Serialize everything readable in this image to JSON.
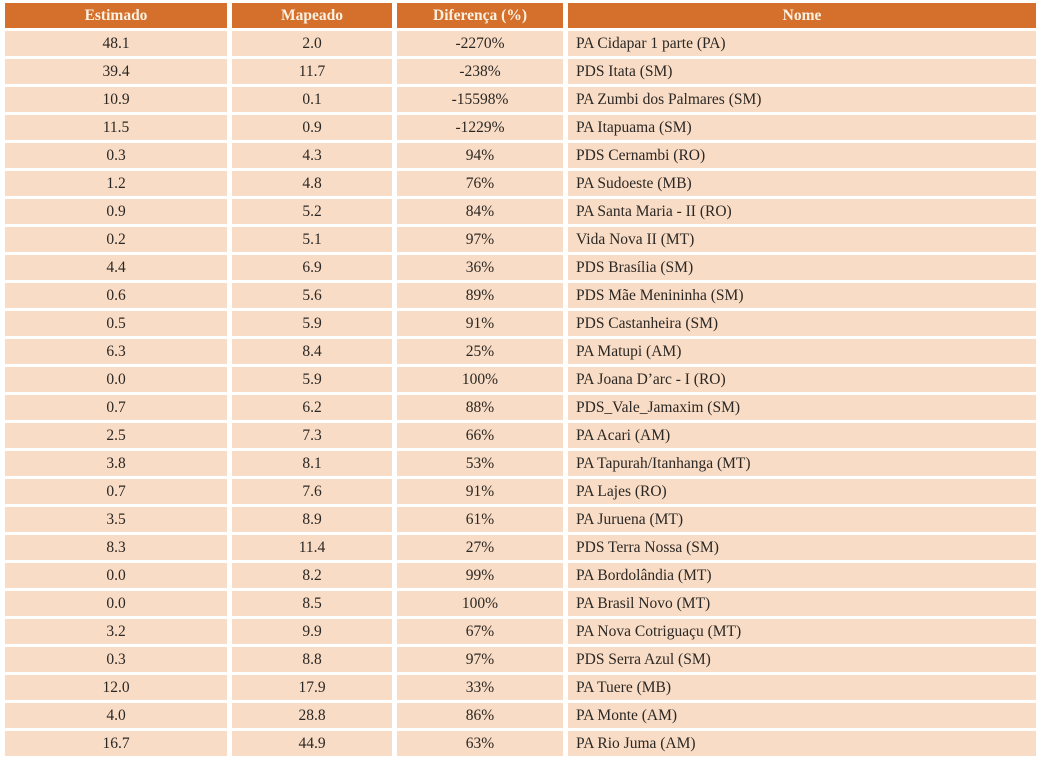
{
  "colors": {
    "header_bg": "#d4702c",
    "header_text": "#faf1e2",
    "row_bg": "#f8dcc5",
    "body_text": "#2b2724",
    "page_bg": "#ffffff"
  },
  "table": {
    "columns": [
      {
        "key": "estimado",
        "label": "Estimado"
      },
      {
        "key": "mapeado",
        "label": "Mapeado"
      },
      {
        "key": "diferenca",
        "label": "Diferença (%)"
      },
      {
        "key": "nome",
        "label": "Nome"
      }
    ]
  },
  "chart_data": {
    "type": "table",
    "title": "",
    "columns": [
      "Estimado",
      "Mapeado",
      "Diferença (%)",
      "Nome"
    ],
    "rows": [
      {
        "estimado": "48.1",
        "mapeado": "2.0",
        "diferenca": "-2270%",
        "nome": "PA Cidapar 1 parte (PA)"
      },
      {
        "estimado": "39.4",
        "mapeado": "11.7",
        "diferenca": "-238%",
        "nome": "PDS Itata (SM)"
      },
      {
        "estimado": "10.9",
        "mapeado": "0.1",
        "diferenca": "-15598%",
        "nome": "PA Zumbi dos Palmares (SM)"
      },
      {
        "estimado": "11.5",
        "mapeado": "0.9",
        "diferenca": "-1229%",
        "nome": "PA Itapuama (SM)"
      },
      {
        "estimado": "0.3",
        "mapeado": "4.3",
        "diferenca": "94%",
        "nome": "PDS Cernambi (RO)"
      },
      {
        "estimado": "1.2",
        "mapeado": "4.8",
        "diferenca": "76%",
        "nome": "PA Sudoeste (MB)"
      },
      {
        "estimado": "0.9",
        "mapeado": "5.2",
        "diferenca": "84%",
        "nome": "PA Santa Maria - II (RO)"
      },
      {
        "estimado": "0.2",
        "mapeado": "5.1",
        "diferenca": "97%",
        "nome": "Vida Nova II (MT)"
      },
      {
        "estimado": "4.4",
        "mapeado": "6.9",
        "diferenca": "36%",
        "nome": "PDS Brasília (SM)"
      },
      {
        "estimado": "0.6",
        "mapeado": "5.6",
        "diferenca": "89%",
        "nome": "PDS Mãe Menininha (SM)"
      },
      {
        "estimado": "0.5",
        "mapeado": "5.9",
        "diferenca": "91%",
        "nome": "PDS Castanheira (SM)"
      },
      {
        "estimado": "6.3",
        "mapeado": "8.4",
        "diferenca": "25%",
        "nome": "PA Matupi (AM)"
      },
      {
        "estimado": "0.0",
        "mapeado": "5.9",
        "diferenca": "100%",
        "nome": "PA Joana D’arc - I (RO)"
      },
      {
        "estimado": "0.7",
        "mapeado": "6.2",
        "diferenca": "88%",
        "nome": "PDS_Vale_Jamaxim (SM)"
      },
      {
        "estimado": "2.5",
        "mapeado": "7.3",
        "diferenca": "66%",
        "nome": "PA Acari (AM)"
      },
      {
        "estimado": "3.8",
        "mapeado": "8.1",
        "diferenca": "53%",
        "nome": "PA Tapurah/Itanhanga (MT)"
      },
      {
        "estimado": "0.7",
        "mapeado": "7.6",
        "diferenca": "91%",
        "nome": "PA Lajes (RO)"
      },
      {
        "estimado": "3.5",
        "mapeado": "8.9",
        "diferenca": "61%",
        "nome": "PA Juruena (MT)"
      },
      {
        "estimado": "8.3",
        "mapeado": "11.4",
        "diferenca": "27%",
        "nome": "PDS Terra Nossa (SM)"
      },
      {
        "estimado": "0.0",
        "mapeado": "8.2",
        "diferenca": "99%",
        "nome": "PA Bordolândia (MT)"
      },
      {
        "estimado": "0.0",
        "mapeado": "8.5",
        "diferenca": "100%",
        "nome": "PA Brasil Novo (MT)"
      },
      {
        "estimado": "3.2",
        "mapeado": "9.9",
        "diferenca": "67%",
        "nome": "PA Nova Cotriguaçu (MT)"
      },
      {
        "estimado": "0.3",
        "mapeado": "8.8",
        "diferenca": "97%",
        "nome": "PDS Serra Azul (SM)"
      },
      {
        "estimado": "12.0",
        "mapeado": "17.9",
        "diferenca": "33%",
        "nome": "PA Tuere (MB)"
      },
      {
        "estimado": "4.0",
        "mapeado": "28.8",
        "diferenca": "86%",
        "nome": "PA Monte (AM)"
      },
      {
        "estimado": "16.7",
        "mapeado": "44.9",
        "diferenca": "63%",
        "nome": "PA Rio Juma (AM)"
      }
    ]
  }
}
